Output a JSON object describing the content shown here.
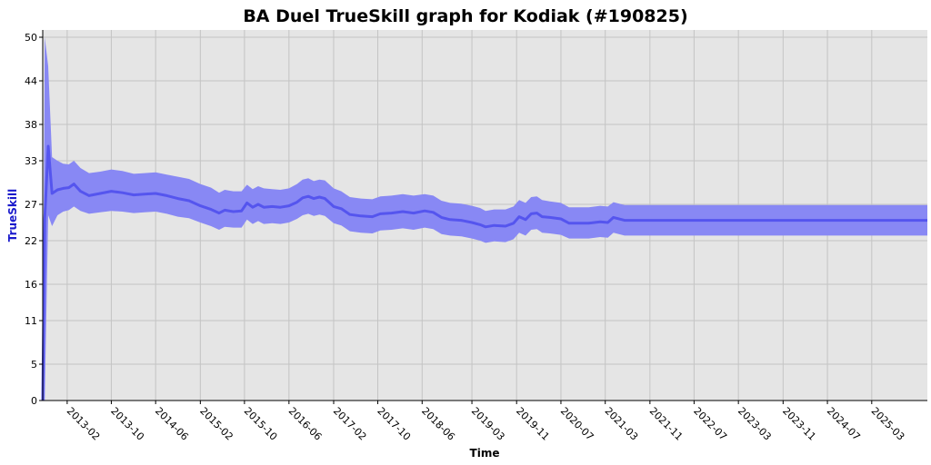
{
  "chart_data": {
    "type": "line",
    "title": "BA Duel TrueSkill graph for Kodiak (#190825)",
    "xlabel": "Time",
    "ylabel": "TrueSkill",
    "ylim": [
      0,
      51
    ],
    "yticks": [
      0,
      5,
      11,
      16,
      22,
      27,
      33,
      38,
      44,
      50
    ],
    "xticks": [
      "2013-02",
      "2013-10",
      "2014-06",
      "2015-02",
      "2015-10",
      "2016-06",
      "2017-02",
      "2017-10",
      "2018-06",
      "2019-03",
      "2019-11",
      "2020-07",
      "2021-03",
      "2021-11",
      "2022-07",
      "2023-03",
      "2023-11",
      "2024-07",
      "2025-03"
    ],
    "xlim": [
      "2012-09-20",
      "2025-12-31"
    ],
    "grid": true,
    "colors": {
      "line": "#5555ee",
      "band": "#8888f4",
      "plot_bg": "#e5e5e5",
      "ylabel": "#1a1acc"
    },
    "series": [
      {
        "points": [
          {
            "x": "2012-09-20",
            "y": 0,
            "lo": 0,
            "hi": 0
          },
          {
            "x": "2012-10-01",
            "y": 25,
            "lo": 0,
            "hi": 50
          },
          {
            "x": "2012-10-20",
            "y": 35,
            "lo": 25.5,
            "hi": 46
          },
          {
            "x": "2012-11-10",
            "y": 28.5,
            "lo": 24,
            "hi": 33.5
          },
          {
            "x": "2012-12-10",
            "y": 29,
            "lo": 25.5,
            "hi": 33
          },
          {
            "x": "2013-01-10",
            "y": 29.2,
            "lo": 26,
            "hi": 32.6
          },
          {
            "x": "2013-02-10",
            "y": 29.3,
            "lo": 26.2,
            "hi": 32.5
          },
          {
            "x": "2013-03-10",
            "y": 29.8,
            "lo": 26.7,
            "hi": 33
          },
          {
            "x": "2013-04-15",
            "y": 28.8,
            "lo": 26.1,
            "hi": 32
          },
          {
            "x": "2013-06-01",
            "y": 28.2,
            "lo": 25.7,
            "hi": 31.3
          },
          {
            "x": "2013-08-01",
            "y": 28.5,
            "lo": 25.9,
            "hi": 31.5
          },
          {
            "x": "2013-10-01",
            "y": 28.8,
            "lo": 26.1,
            "hi": 31.8
          },
          {
            "x": "2013-12-01",
            "y": 28.6,
            "lo": 26,
            "hi": 31.6
          },
          {
            "x": "2014-02-01",
            "y": 28.3,
            "lo": 25.8,
            "hi": 31.2
          },
          {
            "x": "2014-04-01",
            "y": 28.4,
            "lo": 25.9,
            "hi": 31.3
          },
          {
            "x": "2014-06-01",
            "y": 28.5,
            "lo": 26,
            "hi": 31.4
          },
          {
            "x": "2014-08-01",
            "y": 28.2,
            "lo": 25.7,
            "hi": 31.1
          },
          {
            "x": "2014-10-01",
            "y": 27.8,
            "lo": 25.3,
            "hi": 30.8
          },
          {
            "x": "2014-12-01",
            "y": 27.5,
            "lo": 25.1,
            "hi": 30.5
          },
          {
            "x": "2015-02-01",
            "y": 26.8,
            "lo": 24.5,
            "hi": 29.8
          },
          {
            "x": "2015-04-01",
            "y": 26.3,
            "lo": 24,
            "hi": 29.3
          },
          {
            "x": "2015-05-15",
            "y": 25.8,
            "lo": 23.5,
            "hi": 28.6
          },
          {
            "x": "2015-06-15",
            "y": 26.2,
            "lo": 23.9,
            "hi": 29
          },
          {
            "x": "2015-08-01",
            "y": 26,
            "lo": 23.8,
            "hi": 28.8
          },
          {
            "x": "2015-09-15",
            "y": 26.1,
            "lo": 23.8,
            "hi": 28.8
          },
          {
            "x": "2015-10-15",
            "y": 27.2,
            "lo": 24.9,
            "hi": 29.7
          },
          {
            "x": "2015-11-15",
            "y": 26.6,
            "lo": 24.3,
            "hi": 29.1
          },
          {
            "x": "2015-12-15",
            "y": 27,
            "lo": 24.7,
            "hi": 29.5
          },
          {
            "x": "2016-01-15",
            "y": 26.6,
            "lo": 24.3,
            "hi": 29.2
          },
          {
            "x": "2016-03-01",
            "y": 26.7,
            "lo": 24.4,
            "hi": 29.1
          },
          {
            "x": "2016-04-15",
            "y": 26.6,
            "lo": 24.3,
            "hi": 29
          },
          {
            "x": "2016-06-01",
            "y": 26.8,
            "lo": 24.5,
            "hi": 29.2
          },
          {
            "x": "2016-07-15",
            "y": 27.3,
            "lo": 25,
            "hi": 29.8
          },
          {
            "x": "2016-08-15",
            "y": 27.9,
            "lo": 25.5,
            "hi": 30.4
          },
          {
            "x": "2016-09-15",
            "y": 28.1,
            "lo": 25.7,
            "hi": 30.6
          },
          {
            "x": "2016-10-15",
            "y": 27.8,
            "lo": 25.4,
            "hi": 30.2
          },
          {
            "x": "2016-11-15",
            "y": 28,
            "lo": 25.6,
            "hi": 30.4
          },
          {
            "x": "2016-12-15",
            "y": 27.8,
            "lo": 25.4,
            "hi": 30.3
          },
          {
            "x": "2017-02-01",
            "y": 26.7,
            "lo": 24.4,
            "hi": 29.2
          },
          {
            "x": "2017-03-15",
            "y": 26.4,
            "lo": 24.1,
            "hi": 28.8
          },
          {
            "x": "2017-05-01",
            "y": 25.6,
            "lo": 23.3,
            "hi": 28
          },
          {
            "x": "2017-07-01",
            "y": 25.4,
            "lo": 23.1,
            "hi": 27.8
          },
          {
            "x": "2017-09-01",
            "y": 25.3,
            "lo": 23,
            "hi": 27.7
          },
          {
            "x": "2017-10-15",
            "y": 25.7,
            "lo": 23.4,
            "hi": 28.1
          },
          {
            "x": "2017-12-15",
            "y": 25.8,
            "lo": 23.5,
            "hi": 28.2
          },
          {
            "x": "2018-02-15",
            "y": 26,
            "lo": 23.7,
            "hi": 28.4
          },
          {
            "x": "2018-04-15",
            "y": 25.8,
            "lo": 23.5,
            "hi": 28.2
          },
          {
            "x": "2018-06-15",
            "y": 26.1,
            "lo": 23.8,
            "hi": 28.4
          },
          {
            "x": "2018-08-01",
            "y": 25.9,
            "lo": 23.6,
            "hi": 28.2
          },
          {
            "x": "2018-09-15",
            "y": 25.2,
            "lo": 22.9,
            "hi": 27.5
          },
          {
            "x": "2018-11-01",
            "y": 24.9,
            "lo": 22.7,
            "hi": 27.2
          },
          {
            "x": "2019-01-01",
            "y": 24.8,
            "lo": 22.6,
            "hi": 27.1
          },
          {
            "x": "2019-03-01",
            "y": 24.5,
            "lo": 22.3,
            "hi": 26.8
          },
          {
            "x": "2019-04-15",
            "y": 24.2,
            "lo": 22,
            "hi": 26.5
          },
          {
            "x": "2019-05-15",
            "y": 23.9,
            "lo": 21.7,
            "hi": 26.1
          },
          {
            "x": "2019-07-01",
            "y": 24.1,
            "lo": 21.9,
            "hi": 26.3
          },
          {
            "x": "2019-09-01",
            "y": 24,
            "lo": 21.8,
            "hi": 26.3
          },
          {
            "x": "2019-10-15",
            "y": 24.4,
            "lo": 22.2,
            "hi": 26.7
          },
          {
            "x": "2019-11-15",
            "y": 25.3,
            "lo": 23.1,
            "hi": 27.6
          },
          {
            "x": "2019-12-20",
            "y": 24.9,
            "lo": 22.7,
            "hi": 27.2
          },
          {
            "x": "2020-01-20",
            "y": 25.7,
            "lo": 23.5,
            "hi": 28
          },
          {
            "x": "2020-02-20",
            "y": 25.8,
            "lo": 23.6,
            "hi": 28.1
          },
          {
            "x": "2020-03-20",
            "y": 25.3,
            "lo": 23.1,
            "hi": 27.6
          },
          {
            "x": "2020-05-01",
            "y": 25.2,
            "lo": 23,
            "hi": 27.4
          },
          {
            "x": "2020-07-01",
            "y": 25,
            "lo": 22.8,
            "hi": 27.2
          },
          {
            "x": "2020-08-15",
            "y": 24.4,
            "lo": 22.3,
            "hi": 26.6
          },
          {
            "x": "2020-10-01",
            "y": 24.4,
            "lo": 22.3,
            "hi": 26.6
          },
          {
            "x": "2020-12-01",
            "y": 24.4,
            "lo": 22.3,
            "hi": 26.6
          },
          {
            "x": "2021-02-01",
            "y": 24.6,
            "lo": 22.5,
            "hi": 26.8
          },
          {
            "x": "2021-03-15",
            "y": 24.5,
            "lo": 22.4,
            "hi": 26.7
          },
          {
            "x": "2021-04-15",
            "y": 25.2,
            "lo": 23.1,
            "hi": 27.3
          },
          {
            "x": "2021-06-15",
            "y": 24.8,
            "lo": 22.7,
            "hi": 26.9
          },
          {
            "x": "2021-09-01",
            "y": 24.8,
            "lo": 22.7,
            "hi": 26.9
          },
          {
            "x": "2022-07-01",
            "y": 24.8,
            "lo": 22.7,
            "hi": 26.9
          },
          {
            "x": "2023-03-01",
            "y": 24.8,
            "lo": 22.7,
            "hi": 26.9
          },
          {
            "x": "2024-07-01",
            "y": 24.8,
            "lo": 22.7,
            "hi": 26.9
          },
          {
            "x": "2025-12-31",
            "y": 24.8,
            "lo": 22.7,
            "hi": 26.9
          }
        ]
      }
    ]
  }
}
